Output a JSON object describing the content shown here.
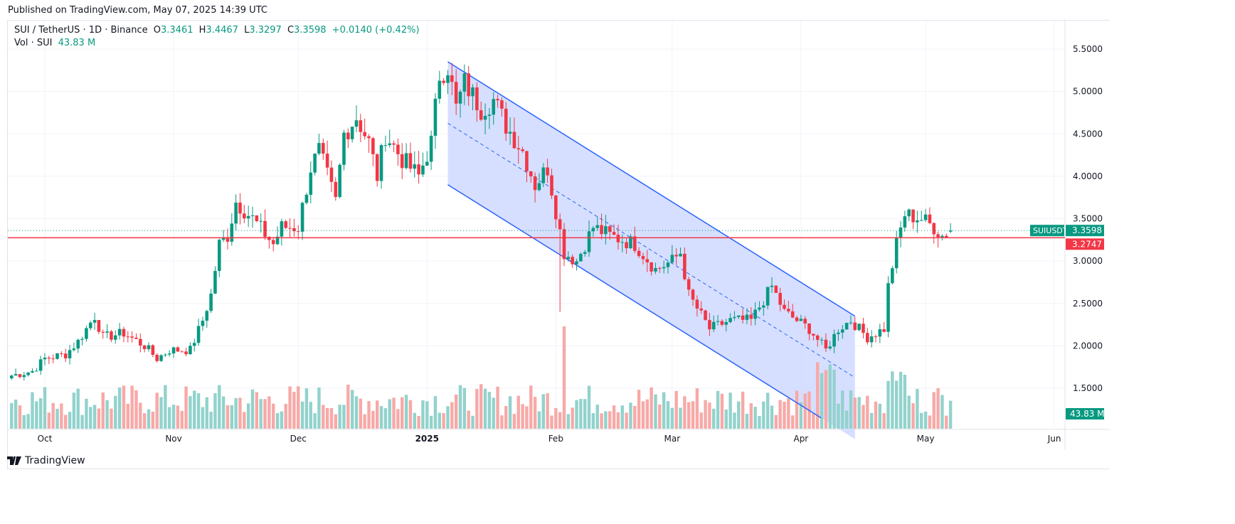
{
  "published": "Published on TradingView.com, May 07, 2025 14:39 UTC",
  "legend": {
    "symbol": "SUI / TetherUS · 1D · Binance",
    "open_label": "O",
    "open": "3.3461",
    "high_label": "H",
    "high": "3.4467",
    "low_label": "L",
    "low": "3.3297",
    "close_label": "C",
    "close": "3.3598",
    "change": "+0.0140 (+0.42%)",
    "vol_label": "Vol · SUI",
    "vol": "43.83 M"
  },
  "price_tag": {
    "label": "SUIUSDT",
    "value": "3.3598"
  },
  "line_tag": {
    "value": "3.2747"
  },
  "vol_tag": {
    "value": "43.83 M"
  },
  "brand": "TradingView",
  "colors": {
    "up": "#089981",
    "down": "#f23645",
    "up_vol": "#92d2cc",
    "down_vol": "#f7a9a7",
    "channel": "#2962ff",
    "channel_fill": "#d1dcff",
    "hline": "#f23645"
  },
  "chart_data": {
    "type": "candlestick",
    "title": "SUI / TetherUS · 1D · Binance",
    "y_ticks": [
      "5.5000",
      "5.0000",
      "4.5000",
      "4.0000",
      "3.5000",
      "3.0000",
      "2.5000",
      "2.0000",
      "1.5000"
    ],
    "ylim": [
      1.15,
      5.8
    ],
    "x_ticks": [
      {
        "label": "Oct",
        "day": 0
      },
      {
        "label": "Nov",
        "day": 31
      },
      {
        "label": "Dec",
        "day": 61
      },
      {
        "label": "2025",
        "day": 92
      },
      {
        "label": "Feb",
        "day": 123
      },
      {
        "label": "Mar",
        "day": 151
      },
      {
        "label": "Apr",
        "day": 182
      },
      {
        "label": "May",
        "day": 212
      },
      {
        "label": "Jun",
        "day": 243
      }
    ],
    "x_unit": "days since Oct 1 2024",
    "close_anchors": [
      [
        -8,
        1.65
      ],
      [
        -3,
        1.7
      ],
      [
        0,
        1.85
      ],
      [
        5,
        1.9
      ],
      [
        8,
        2.05
      ],
      [
        12,
        2.35
      ],
      [
        14,
        2.1
      ],
      [
        19,
        2.15
      ],
      [
        24,
        2.0
      ],
      [
        27,
        1.85
      ],
      [
        30,
        1.95
      ],
      [
        35,
        1.95
      ],
      [
        38,
        2.3
      ],
      [
        40,
        2.6
      ],
      [
        42,
        3.2
      ],
      [
        44,
        3.3
      ],
      [
        46,
        3.7
      ],
      [
        48,
        3.6
      ],
      [
        50,
        3.5
      ],
      [
        55,
        3.2
      ],
      [
        57,
        3.4
      ],
      [
        61,
        3.4
      ],
      [
        64,
        4.1
      ],
      [
        66,
        4.3
      ],
      [
        68,
        4.0
      ],
      [
        70,
        3.7
      ],
      [
        72,
        4.5
      ],
      [
        75,
        4.7
      ],
      [
        78,
        4.4
      ],
      [
        80,
        4.0
      ],
      [
        82,
        4.5
      ],
      [
        86,
        4.2
      ],
      [
        90,
        4.0
      ],
      [
        93,
        4.4
      ],
      [
        95,
        5.2
      ],
      [
        97,
        5.3
      ],
      [
        99,
        4.8
      ],
      [
        101,
        5.1
      ],
      [
        105,
        4.8
      ],
      [
        108,
        4.9
      ],
      [
        111,
        4.6
      ],
      [
        115,
        4.3
      ],
      [
        118,
        3.9
      ],
      [
        121,
        4.1
      ],
      [
        125,
        3.1
      ],
      [
        128,
        3.0
      ],
      [
        132,
        3.4
      ],
      [
        136,
        3.3
      ],
      [
        142,
        3.2
      ],
      [
        147,
        2.9
      ],
      [
        151,
        3.0
      ],
      [
        153,
        3.1
      ],
      [
        155,
        2.6
      ],
      [
        160,
        2.2
      ],
      [
        165,
        2.3
      ],
      [
        170,
        2.3
      ],
      [
        175,
        2.7
      ],
      [
        178,
        2.4
      ],
      [
        184,
        2.2
      ],
      [
        188,
        1.95
      ],
      [
        191,
        2.2
      ],
      [
        194,
        2.3
      ],
      [
        198,
        2.1
      ],
      [
        202,
        2.2
      ],
      [
        203,
        2.7
      ],
      [
        205,
        3.2
      ],
      [
        207,
        3.55
      ],
      [
        211,
        3.5
      ],
      [
        214,
        3.4
      ],
      [
        216,
        3.3
      ],
      [
        218,
        3.3598
      ]
    ],
    "volume_spike_day": 125,
    "horizontal_line": 3.2747,
    "last_price": 3.3598,
    "last_volume_m": 43.83,
    "channel": {
      "start_day": 97,
      "end_day": 195,
      "upper": [
        5.35,
        2.35
      ],
      "lower": [
        3.9,
        0.9
      ]
    }
  }
}
